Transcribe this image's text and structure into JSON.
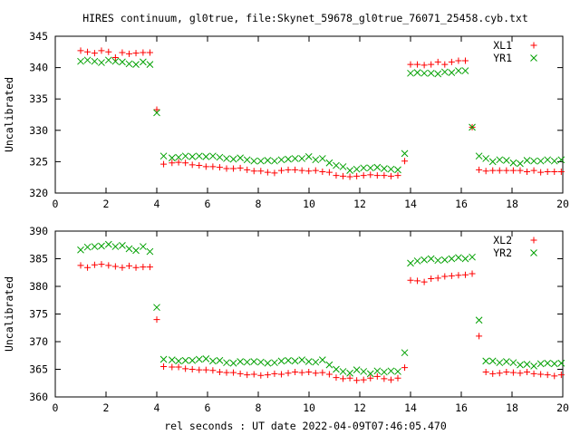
{
  "title": "HIRES continuum, gl0true, file:Skynet_59678_gl0true_76071_25458.cyb.txt",
  "xlabel": "rel seconds : UT date 2022-04-09T07:46:05.470",
  "colors": {
    "red_marker": "#ff0000",
    "green_marker": "#00a000",
    "axis": "#000000",
    "background": "#ffffff"
  },
  "chart_data": [
    {
      "type": "scatter",
      "title": "HIRES continuum, gl0true, file:Skynet_59678_gl0true_76071_25458.cyb.txt",
      "xlabel": "",
      "ylabel": "Uncalibrated",
      "xlim": [
        0,
        20
      ],
      "ylim": [
        320,
        345
      ],
      "xticks": [
        "0",
        "2",
        "4",
        "6",
        "8",
        "10",
        "12",
        "14",
        "16",
        "18",
        "20"
      ],
      "yticks": [
        "320",
        "325",
        "330",
        "335",
        "340",
        "345"
      ],
      "legend_position": "top-right",
      "grid": false,
      "series": [
        {
          "name": "XL1",
          "marker": "plus",
          "color": "#ff0000",
          "x": [
            1.0,
            1.27,
            1.55,
            1.82,
            2.1,
            2.37,
            2.64,
            2.91,
            3.18,
            3.46,
            3.73,
            4.0,
            4.27,
            4.6,
            4.86,
            5.13,
            5.4,
            5.67,
            5.94,
            6.21,
            6.48,
            6.75,
            7.02,
            7.29,
            7.56,
            7.83,
            8.1,
            8.37,
            8.64,
            8.91,
            9.18,
            9.45,
            9.72,
            9.99,
            10.26,
            10.53,
            10.8,
            11.07,
            11.34,
            11.61,
            11.88,
            12.15,
            12.42,
            12.69,
            12.96,
            13.23,
            13.5,
            13.77,
            14.0,
            14.27,
            14.54,
            14.81,
            15.08,
            15.35,
            15.62,
            15.89,
            16.16,
            16.43,
            16.7,
            16.97,
            17.24,
            17.51,
            17.78,
            18.05,
            18.32,
            18.59,
            18.86,
            19.13,
            19.4,
            19.67,
            19.94
          ],
          "y": [
            342.7,
            342.5,
            342.3,
            342.7,
            342.5,
            341.6,
            342.4,
            342.2,
            342.3,
            342.4,
            342.4,
            333.3,
            324.6,
            324.8,
            324.9,
            324.8,
            324.5,
            324.4,
            324.2,
            324.2,
            324.1,
            323.9,
            323.9,
            324.0,
            323.7,
            323.5,
            323.5,
            323.3,
            323.2,
            323.6,
            323.7,
            323.7,
            323.6,
            323.5,
            323.6,
            323.4,
            323.3,
            322.8,
            322.7,
            322.6,
            322.7,
            322.8,
            322.9,
            322.8,
            322.8,
            322.7,
            322.8,
            325.1,
            340.5,
            340.5,
            340.4,
            340.5,
            340.9,
            340.5,
            340.9,
            341.1,
            341.1,
            330.5,
            323.7,
            323.5,
            323.6,
            323.6,
            323.6,
            323.6,
            323.6,
            323.4,
            323.6,
            323.3,
            323.4,
            323.4,
            323.4
          ],
          "x_note": ""
        },
        {
          "name": "YR1",
          "marker": "cross",
          "color": "#00a000",
          "x": [
            1.0,
            1.27,
            1.55,
            1.82,
            2.1,
            2.37,
            2.64,
            2.91,
            3.18,
            3.46,
            3.73,
            4.0,
            4.27,
            4.6,
            4.86,
            5.13,
            5.4,
            5.67,
            5.94,
            6.21,
            6.48,
            6.75,
            7.02,
            7.29,
            7.56,
            7.83,
            8.1,
            8.37,
            8.64,
            8.91,
            9.18,
            9.45,
            9.72,
            9.99,
            10.26,
            10.53,
            10.8,
            11.07,
            11.34,
            11.61,
            11.88,
            12.15,
            12.42,
            12.69,
            12.96,
            13.23,
            13.5,
            13.77,
            14.0,
            14.27,
            14.54,
            14.81,
            15.08,
            15.35,
            15.62,
            15.89,
            16.16,
            16.43,
            16.7,
            16.97,
            17.24,
            17.51,
            17.78,
            18.05,
            18.32,
            18.59,
            18.86,
            19.13,
            19.4,
            19.67,
            19.94
          ],
          "y": [
            341.0,
            341.2,
            341.0,
            340.8,
            341.2,
            341.0,
            340.9,
            340.6,
            340.5,
            340.9,
            340.5,
            332.8,
            325.9,
            325.6,
            325.7,
            325.9,
            325.8,
            325.9,
            325.8,
            325.9,
            325.7,
            325.5,
            325.4,
            325.6,
            325.3,
            325.1,
            325.1,
            325.2,
            325.1,
            325.3,
            325.4,
            325.5,
            325.5,
            325.8,
            325.3,
            325.5,
            324.8,
            324.4,
            324.2,
            323.6,
            323.8,
            324.0,
            324.0,
            324.1,
            323.9,
            323.8,
            323.7,
            326.3,
            339.1,
            339.2,
            339.1,
            339.1,
            339.0,
            339.3,
            339.2,
            339.5,
            339.5,
            330.5,
            325.9,
            325.5,
            325.0,
            325.3,
            325.2,
            324.8,
            324.7,
            325.2,
            325.1,
            325.1,
            325.3,
            325.1,
            325.3
          ],
          "x_note": ""
        }
      ]
    },
    {
      "type": "scatter",
      "title": "",
      "xlabel": "rel seconds : UT date 2022-04-09T07:46:05.470",
      "ylabel": "Uncalibrated",
      "xlim": [
        0,
        20
      ],
      "ylim": [
        360,
        390
      ],
      "xticks": [
        "0",
        "2",
        "4",
        "6",
        "8",
        "10",
        "12",
        "14",
        "16",
        "18",
        "20"
      ],
      "yticks": [
        "360",
        "365",
        "370",
        "375",
        "380",
        "385",
        "390"
      ],
      "legend_position": "top-right",
      "grid": false,
      "series": [
        {
          "name": "XL2",
          "marker": "plus",
          "color": "#ff0000",
          "x": [
            1.0,
            1.27,
            1.55,
            1.82,
            2.1,
            2.37,
            2.64,
            2.91,
            3.18,
            3.46,
            3.73,
            4.0,
            4.27,
            4.6,
            4.86,
            5.13,
            5.4,
            5.67,
            5.94,
            6.21,
            6.48,
            6.75,
            7.02,
            7.29,
            7.56,
            7.83,
            8.1,
            8.37,
            8.64,
            8.91,
            9.18,
            9.45,
            9.72,
            9.99,
            10.26,
            10.53,
            10.8,
            11.07,
            11.34,
            11.61,
            11.88,
            12.15,
            12.42,
            12.69,
            12.96,
            13.23,
            13.5,
            13.77,
            14.0,
            14.27,
            14.54,
            14.81,
            15.08,
            15.35,
            15.62,
            15.89,
            16.16,
            16.43,
            16.7,
            16.97,
            17.24,
            17.51,
            17.78,
            18.05,
            18.32,
            18.59,
            18.86,
            19.13,
            19.4,
            19.67,
            19.94
          ],
          "y": [
            383.8,
            383.4,
            383.9,
            384.0,
            383.8,
            383.6,
            383.4,
            383.7,
            383.4,
            383.5,
            383.5,
            374.0,
            365.5,
            365.4,
            365.4,
            365.1,
            365.0,
            364.9,
            364.9,
            364.8,
            364.5,
            364.4,
            364.4,
            364.2,
            364.0,
            364.1,
            363.9,
            364.0,
            364.2,
            364.1,
            364.3,
            364.5,
            364.4,
            364.5,
            364.3,
            364.4,
            364.1,
            363.5,
            363.3,
            363.4,
            363.0,
            363.1,
            363.4,
            363.7,
            363.3,
            363.1,
            363.4,
            365.3,
            381.1,
            381.0,
            380.8,
            381.4,
            381.5,
            381.8,
            381.9,
            382.0,
            382.1,
            382.3,
            371.0,
            364.5,
            364.2,
            364.3,
            364.5,
            364.4,
            364.3,
            364.5,
            364.2,
            364.1,
            364.0,
            363.8,
            364.0
          ],
          "x_note": ""
        },
        {
          "name": "YR2",
          "marker": "cross",
          "color": "#00a000",
          "x": [
            1.0,
            1.27,
            1.55,
            1.82,
            2.1,
            2.37,
            2.64,
            2.91,
            3.18,
            3.46,
            3.73,
            4.0,
            4.27,
            4.6,
            4.86,
            5.13,
            5.4,
            5.67,
            5.94,
            6.21,
            6.48,
            6.75,
            7.02,
            7.29,
            7.56,
            7.83,
            8.1,
            8.37,
            8.64,
            8.91,
            9.18,
            9.45,
            9.72,
            9.99,
            10.26,
            10.53,
            10.8,
            11.07,
            11.34,
            11.61,
            11.88,
            12.15,
            12.42,
            12.69,
            12.96,
            13.23,
            13.5,
            13.77,
            14.0,
            14.27,
            14.54,
            14.81,
            15.08,
            15.35,
            15.62,
            15.89,
            16.16,
            16.43,
            16.7,
            16.97,
            17.24,
            17.51,
            17.78,
            18.05,
            18.32,
            18.59,
            18.86,
            19.13,
            19.4,
            19.67,
            19.94
          ],
          "y": [
            386.6,
            387.1,
            387.2,
            387.3,
            387.6,
            387.2,
            387.4,
            386.8,
            386.5,
            387.2,
            386.3,
            376.2,
            366.8,
            366.7,
            366.5,
            366.6,
            366.6,
            366.8,
            366.9,
            366.5,
            366.6,
            366.2,
            366.1,
            366.4,
            366.3,
            366.4,
            366.3,
            366.1,
            366.2,
            366.5,
            366.6,
            366.5,
            366.7,
            366.4,
            366.3,
            366.7,
            365.8,
            365.0,
            364.6,
            364.3,
            364.9,
            364.6,
            364.2,
            364.7,
            364.5,
            364.7,
            364.6,
            368.0,
            384.2,
            384.6,
            384.8,
            385.0,
            384.7,
            384.8,
            385.0,
            385.2,
            385.0,
            385.3,
            373.9,
            366.5,
            366.5,
            366.2,
            366.4,
            366.2,
            365.8,
            365.9,
            365.6,
            366.0,
            366.1,
            366.0,
            366.1
          ],
          "x_note": ""
        }
      ]
    }
  ]
}
